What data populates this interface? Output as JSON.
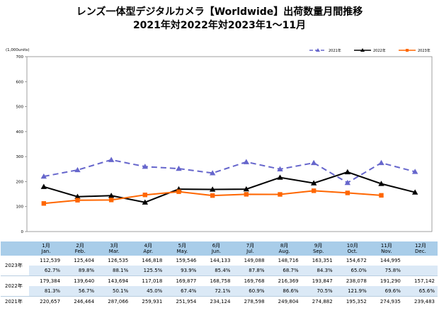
{
  "title": {
    "line1": "レンズ一体型デジタルカメラ【Worldwide】出荷数量月間推移",
    "line2": "2021年対2022年対2023年1～11月"
  },
  "chart_data": {
    "type": "line",
    "unit_label": "(1,000units)",
    "ylim": [
      0,
      700
    ],
    "yticks": [
      0,
      100,
      200,
      300,
      400,
      500,
      600,
      700
    ],
    "grid": false,
    "legend_position": "top-right",
    "categories": [
      "1月 Jan.",
      "2月 Feb.",
      "3月 Mar.",
      "4月 Apr.",
      "5月 May.",
      "6月 Jun.",
      "7月 Jul.",
      "8月 Aug.",
      "9月 Sep.",
      "10月 Oct.",
      "11月 Nov.",
      "12月 Dec."
    ],
    "series": [
      {
        "name": "2021年",
        "color": "#6666cc",
        "style": "dashed",
        "marker": "triangle",
        "values": [
          220.657,
          246.464,
          287.066,
          259.931,
          251.954,
          234.124,
          278.598,
          249.804,
          274.882,
          195.352,
          274.935,
          239.483
        ]
      },
      {
        "name": "2022年",
        "color": "#000000",
        "style": "solid",
        "marker": "triangle",
        "values": [
          179.384,
          139.64,
          143.694,
          117.018,
          169.877,
          168.758,
          169.768,
          216.369,
          193.847,
          238.078,
          191.29,
          157.142
        ]
      },
      {
        "name": "2023年",
        "color": "#ff6600",
        "style": "solid",
        "marker": "square",
        "values": [
          112.539,
          125.404,
          126.535,
          146.818,
          159.546,
          144.133,
          149.088,
          148.716,
          163.351,
          154.672,
          144.995,
          null
        ]
      }
    ]
  },
  "table": {
    "months": [
      {
        "jp": "1月",
        "en": "Jan."
      },
      {
        "jp": "2月",
        "en": "Feb."
      },
      {
        "jp": "3月",
        "en": "Mar."
      },
      {
        "jp": "4月",
        "en": "Apr."
      },
      {
        "jp": "5月",
        "en": "May."
      },
      {
        "jp": "6月",
        "en": "Jun."
      },
      {
        "jp": "7月",
        "en": "Jul."
      },
      {
        "jp": "8月",
        "en": "Aug."
      },
      {
        "jp": "9月",
        "en": "Sep."
      },
      {
        "jp": "10月",
        "en": "Oct."
      },
      {
        "jp": "11月",
        "en": "Nov."
      },
      {
        "jp": "12月",
        "en": "Dec."
      }
    ],
    "rows": [
      {
        "label": "2023年",
        "values": [
          "112,539",
          "125,404",
          "126,535",
          "146,818",
          "159,546",
          "144,133",
          "149,088",
          "148,716",
          "163,351",
          "154,672",
          "144,995",
          ""
        ],
        "ratios": [
          "62.7%",
          "89.8%",
          "88.1%",
          "125.5%",
          "93.9%",
          "85.4%",
          "87.8%",
          "68.7%",
          "84.3%",
          "65.0%",
          "75.8%",
          ""
        ]
      },
      {
        "label": "2022年",
        "values": [
          "179,384",
          "139,640",
          "143,694",
          "117,018",
          "169,877",
          "168,758",
          "169,768",
          "216,369",
          "193,847",
          "238,078",
          "191,290",
          "157,142"
        ],
        "ratios": [
          "81.3%",
          "56.7%",
          "50.1%",
          "45.0%",
          "67.4%",
          "72.1%",
          "60.9%",
          "86.6%",
          "70.5%",
          "121.9%",
          "69.6%",
          "65.6%"
        ]
      },
      {
        "label": "2021年",
        "values": [
          "220,657",
          "246,464",
          "287,066",
          "259,931",
          "251,954",
          "234,124",
          "278,598",
          "249,804",
          "274,882",
          "195,352",
          "274,935",
          "239,483"
        ],
        "ratios": []
      }
    ]
  }
}
